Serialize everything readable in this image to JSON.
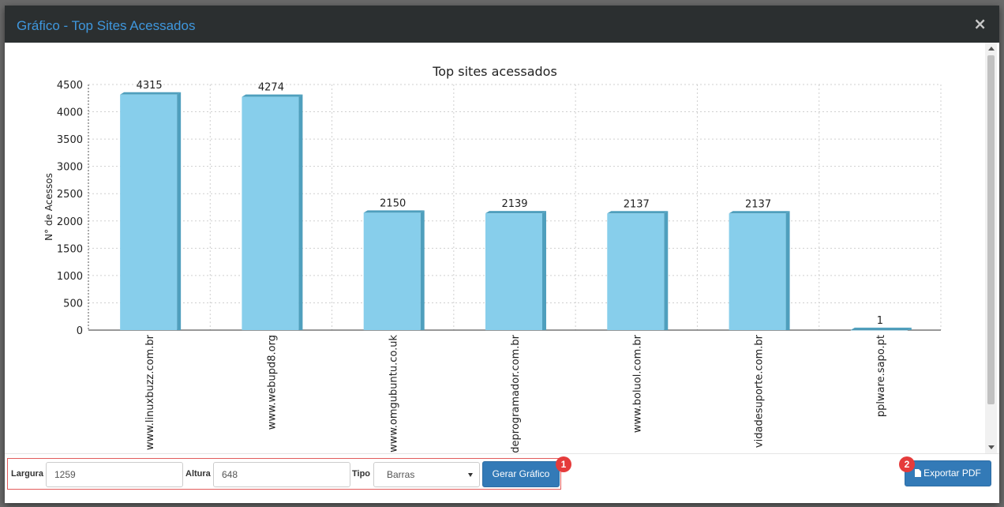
{
  "modal": {
    "title": "Gráfico - Top Sites Acessados",
    "close_label": "×"
  },
  "chart_data": {
    "type": "bar",
    "title": "Top sites acessados",
    "xlabel": "",
    "ylabel": "N° de Acessos",
    "ylim": [
      0,
      4500
    ],
    "yticks": [
      0,
      500,
      1000,
      1500,
      2000,
      2500,
      3000,
      3500,
      4000,
      4500
    ],
    "grid": true,
    "categories": [
      "www.linuxbuzz.com.br",
      "www.webupd8.org",
      "www.omgubuntu.co.uk",
      "www.vidadeprogramador.com.br",
      "www.boluol.com.br",
      "vidadesuporte.com.br",
      "pplware.sapo.pt"
    ],
    "values": [
      4315,
      4274,
      2150,
      2139,
      2137,
      2137,
      1
    ],
    "bar_color": "#87ceeb",
    "bar_side_color": "#4f9fbd"
  },
  "controls": {
    "width_label": "Largura",
    "width_value": "1259",
    "height_label": "Altura",
    "height_value": "648",
    "type_label": "Tipo",
    "type_value": "Barras",
    "generate_button": "Gerar Gráfico",
    "generate_badge": "1",
    "export_button": "Exportar PDF",
    "export_badge": "2"
  }
}
